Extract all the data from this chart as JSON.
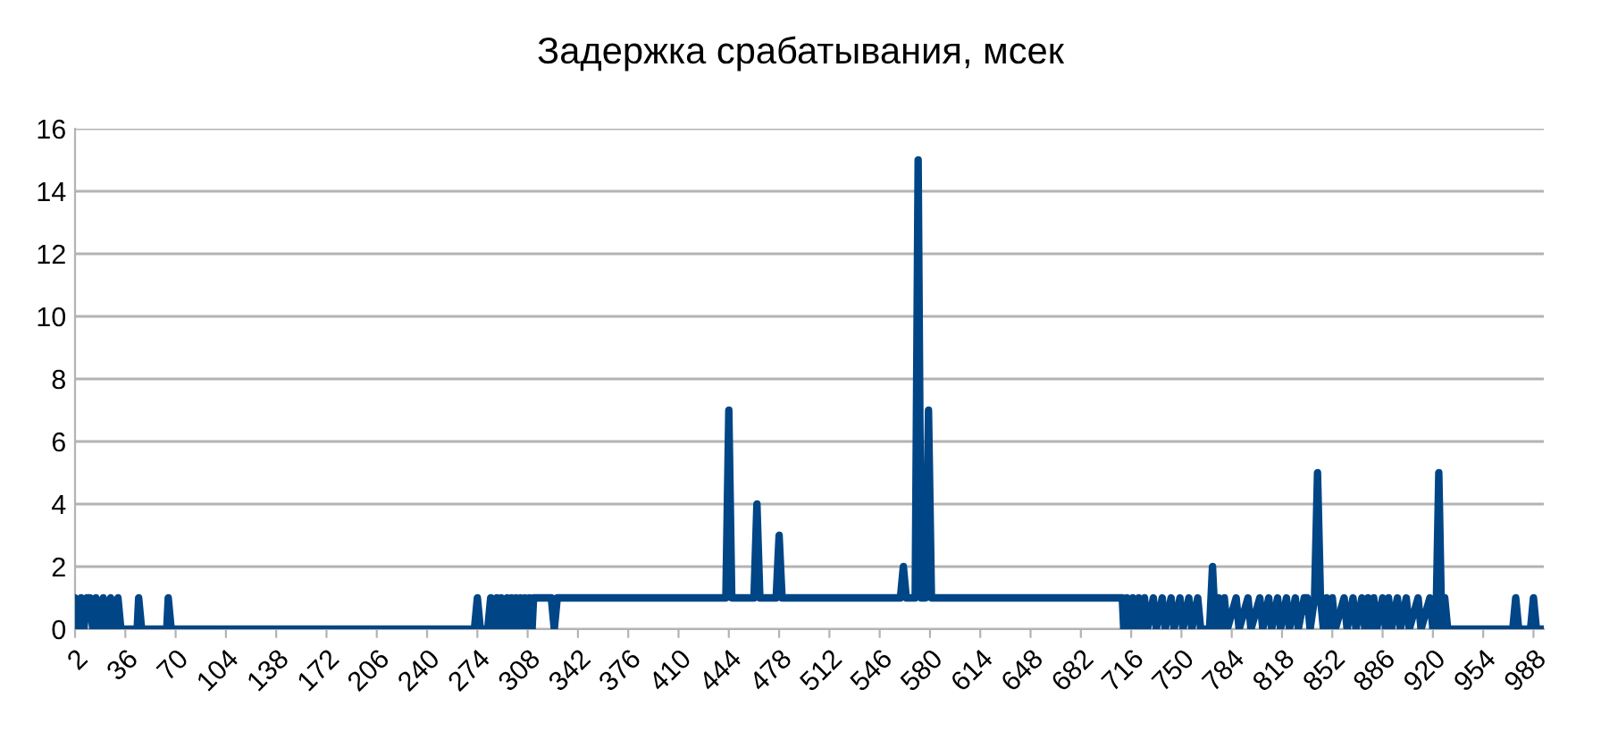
{
  "chart_data": {
    "type": "line",
    "title": "Задержка срабатывания, мсек",
    "x": [
      2,
      4,
      6,
      8,
      10,
      12,
      14,
      16,
      18,
      20,
      21,
      23,
      26,
      28,
      30,
      31,
      33,
      44,
      45,
      47,
      64,
      65,
      67,
      150,
      272,
      274,
      276,
      281,
      283,
      285,
      287,
      289,
      290,
      292,
      294,
      296,
      297,
      299,
      300,
      302,
      303,
      305,
      306,
      308,
      309,
      311,
      312,
      324,
      326,
      328,
      400,
      442,
      444,
      446,
      461,
      463,
      465,
      476,
      478,
      480,
      560,
      562,
      564,
      570,
      572,
      574,
      577,
      579,
      581,
      650,
      710,
      711,
      713,
      715,
      717,
      719,
      721,
      723,
      725,
      727,
      731,
      733,
      737,
      739,
      743,
      745,
      749,
      751,
      755,
      757,
      761,
      763,
      769,
      771,
      773,
      775,
      777,
      779,
      781,
      787,
      789,
      795,
      797,
      803,
      805,
      809,
      811,
      815,
      817,
      821,
      823,
      827,
      829,
      833,
      835,
      837,
      840,
      842,
      844,
      846,
      848,
      850,
      852,
      854,
      860,
      862,
      866,
      868,
      872,
      874,
      876,
      878,
      880,
      882,
      886,
      888,
      890,
      892,
      896,
      898,
      902,
      904,
      910,
      912,
      918,
      920,
      922,
      924,
      926,
      928,
      930,
      974,
      976,
      978,
      986,
      988,
      990,
      995
    ],
    "series": [
      {
        "color": "#004586",
        "values": [
          1,
          0,
          1,
          0,
          1,
          1,
          0,
          1,
          0,
          0,
          1,
          0,
          1,
          0,
          0,
          1,
          0,
          0,
          1,
          0,
          0,
          1,
          0,
          0,
          0,
          1,
          0,
          0,
          1,
          0,
          1,
          0,
          1,
          0,
          1,
          0,
          1,
          0,
          1,
          0,
          1,
          0,
          1,
          0,
          1,
          0,
          1,
          1,
          0,
          1,
          1,
          1,
          7,
          1,
          1,
          4,
          1,
          1,
          3,
          1,
          1,
          2,
          1,
          1,
          15,
          1,
          1,
          7,
          1,
          1,
          1,
          0,
          1,
          0,
          1,
          0,
          1,
          0,
          1,
          0,
          1,
          0,
          1,
          0,
          1,
          0,
          1,
          0,
          1,
          0,
          1,
          0,
          0,
          2,
          0,
          1,
          0,
          1,
          0,
          1,
          0,
          1,
          0,
          1,
          0,
          1,
          0,
          1,
          0,
          1,
          0,
          1,
          0,
          1,
          1,
          0,
          1,
          5,
          1,
          0,
          1,
          0,
          1,
          0,
          1,
          0,
          1,
          0,
          1,
          0,
          1,
          0,
          1,
          0,
          1,
          0,
          1,
          0,
          1,
          0,
          1,
          0,
          1,
          0,
          1,
          0,
          0,
          5,
          0,
          1,
          0,
          0,
          1,
          0,
          0,
          1,
          0,
          0
        ]
      }
    ],
    "xlim": [
      2,
      995
    ],
    "xticks": [
      2,
      36,
      70,
      104,
      138,
      172,
      206,
      240,
      274,
      308,
      342,
      376,
      410,
      444,
      478,
      512,
      546,
      580,
      614,
      648,
      682,
      716,
      750,
      784,
      818,
      852,
      886,
      920,
      954,
      988
    ],
    "ylim": [
      0,
      16
    ],
    "yticks": [
      0,
      2,
      4,
      6,
      8,
      10,
      12,
      14,
      16
    ],
    "grid": "y",
    "line_style": "solid"
  }
}
